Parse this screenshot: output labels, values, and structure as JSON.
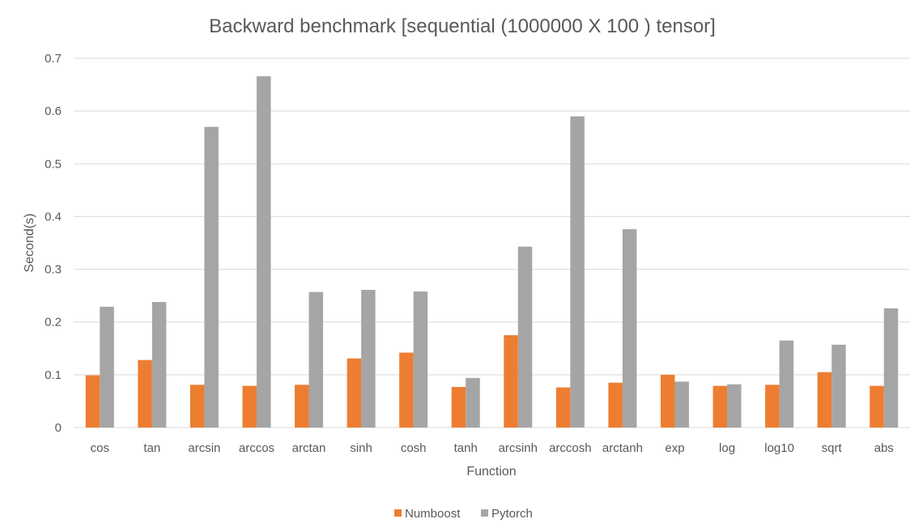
{
  "chart_data": {
    "type": "bar",
    "title": "Backward benchmark [sequential (1000000 X 100 ) tensor]",
    "xlabel": "Function",
    "ylabel": "Second(s)",
    "ylim": [
      0,
      0.7
    ],
    "yticks": [
      0,
      0.1,
      0.2,
      0.3,
      0.4,
      0.5,
      0.6,
      0.7
    ],
    "ytick_labels": [
      "0",
      "0.1",
      "0.2",
      "0.3",
      "0.4",
      "0.5",
      "0.6",
      "0.7"
    ],
    "grid": true,
    "legend_position": "bottom",
    "categories": [
      "cos",
      "tan",
      "arcsin",
      "arccos",
      "arctan",
      "sinh",
      "cosh",
      "tanh",
      "arcsinh",
      "arccosh",
      "arctanh",
      "exp",
      "log",
      "log10",
      "sqrt",
      "abs"
    ],
    "series": [
      {
        "name": "Numboost",
        "color": "#ED7D31",
        "values": [
          0.099,
          0.128,
          0.081,
          0.079,
          0.081,
          0.131,
          0.142,
          0.077,
          0.175,
          0.076,
          0.085,
          0.1,
          0.079,
          0.081,
          0.105,
          0.079
        ]
      },
      {
        "name": "Pytorch",
        "color": "#A5A5A5",
        "values": [
          0.229,
          0.238,
          0.57,
          0.666,
          0.257,
          0.261,
          0.258,
          0.094,
          0.343,
          0.59,
          0.376,
          0.087,
          0.082,
          0.165,
          0.157,
          0.226
        ]
      }
    ]
  }
}
